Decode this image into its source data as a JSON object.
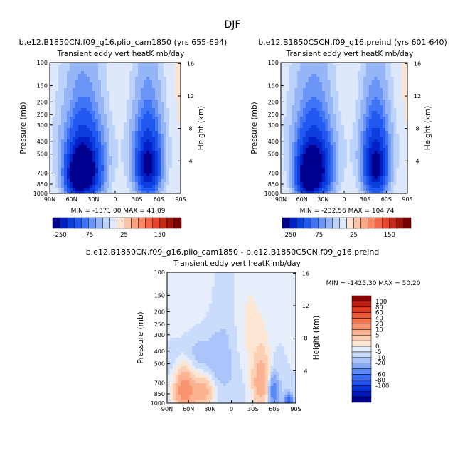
{
  "page_title": "DJF",
  "chart_data": [
    {
      "type": "heatmap",
      "title": "b.e12.B1850CN.f09_g16.plio_cam1850 (yrs 655-694)",
      "subtitle": "Transient eddy vert heatK mb/day",
      "xlabel": "",
      "ylabel": "Pressure (mb)",
      "ylabel_right": "Height (km)",
      "x_ticks": [
        "90N",
        "60N",
        "30N",
        "0",
        "30S",
        "60S",
        "90S"
      ],
      "x_values": [
        90,
        60,
        30,
        0,
        -30,
        -60,
        -90
      ],
      "y_ticks": [
        "100",
        "150",
        "200",
        "250",
        "300",
        "400",
        "500",
        "700",
        "850",
        "1000"
      ],
      "y_values": [
        100,
        150,
        200,
        250,
        300,
        400,
        500,
        700,
        850,
        1000
      ],
      "right_ticks": [
        "4",
        "8",
        "12",
        "16"
      ],
      "ylim": [
        1000,
        100
      ],
      "stats": "MIN = -1371.00   MAX =  41.09",
      "min": -1371.0,
      "max": 41.09,
      "features": [
        {
          "lat": 40,
          "p": 700,
          "value": -300,
          "lat_sigma": 14,
          "p_sigma": 240
        },
        {
          "lat": 55,
          "p": 750,
          "value": -200,
          "lat_sigma": 10,
          "p_sigma": 200
        },
        {
          "lat": -45,
          "p": 650,
          "value": -250,
          "lat_sigma": 11,
          "p_sigma": 240
        },
        {
          "lat": 45,
          "p": 400,
          "value": -80,
          "lat_sigma": 20,
          "p_sigma": 220
        },
        {
          "lat": -45,
          "p": 400,
          "value": -60,
          "lat_sigma": 16,
          "p_sigma": 220
        },
        {
          "lat": 0,
          "p": 500,
          "value": -3,
          "lat_sigma": 40,
          "p_sigma": 500
        },
        {
          "lat": 20,
          "p": 180,
          "value": 4,
          "lat_sigma": 28,
          "p_sigma": 120
        },
        {
          "lat": -55,
          "p": 180,
          "value": 3,
          "lat_sigma": 40,
          "p_sigma": 150
        }
      ]
    },
    {
      "type": "heatmap",
      "title": "b.e12.B1850C5CN.f09_g16.preind (yrs 601-640)",
      "subtitle": "Transient eddy vert heatK mb/day",
      "xlabel": "",
      "ylabel": "Pressure (mb)",
      "ylabel_right": "Height (km)",
      "x_ticks": [
        "90N",
        "60N",
        "30N",
        "0",
        "30S",
        "60S",
        "90S"
      ],
      "x_values": [
        90,
        60,
        30,
        0,
        -30,
        -60,
        -90
      ],
      "y_ticks": [
        "100",
        "150",
        "200",
        "250",
        "300",
        "400",
        "500",
        "700",
        "850",
        "1000"
      ],
      "y_values": [
        100,
        150,
        200,
        250,
        300,
        400,
        500,
        700,
        850,
        1000
      ],
      "right_ticks": [
        "4",
        "8",
        "12",
        "16"
      ],
      "ylim": [
        1000,
        100
      ],
      "stats": "MIN = -232.56   MAX = 104.74",
      "min": -232.56,
      "max": 104.74,
      "features": [
        {
          "lat": 40,
          "p": 700,
          "value": -290,
          "lat_sigma": 14,
          "p_sigma": 240
        },
        {
          "lat": 55,
          "p": 750,
          "value": -190,
          "lat_sigma": 10,
          "p_sigma": 200
        },
        {
          "lat": -45,
          "p": 650,
          "value": -260,
          "lat_sigma": 11,
          "p_sigma": 240
        },
        {
          "lat": 45,
          "p": 400,
          "value": -80,
          "lat_sigma": 20,
          "p_sigma": 220
        },
        {
          "lat": -45,
          "p": 400,
          "value": -60,
          "lat_sigma": 16,
          "p_sigma": 220
        },
        {
          "lat": 0,
          "p": 500,
          "value": -3,
          "lat_sigma": 40,
          "p_sigma": 500
        },
        {
          "lat": 20,
          "p": 180,
          "value": 4,
          "lat_sigma": 28,
          "p_sigma": 120
        },
        {
          "lat": -55,
          "p": 180,
          "value": 3,
          "lat_sigma": 40,
          "p_sigma": 150
        }
      ]
    },
    {
      "type": "heatmap",
      "title": "b.e12.B1850CN.f09_g16.plio_cam1850 - b.e12.B1850C5CN.f09_g16.preind",
      "subtitle": "Transient eddy vert heatK mb/day",
      "xlabel": "",
      "ylabel": "Pressure (mb)",
      "ylabel_right": "Height (km)",
      "x_ticks": [
        "90N",
        "60N",
        "30N",
        "0",
        "30S",
        "60S",
        "90S"
      ],
      "x_values": [
        90,
        60,
        30,
        0,
        -30,
        -60,
        -90
      ],
      "y_ticks": [
        "100",
        "150",
        "200",
        "250",
        "300",
        "400",
        "500",
        "700",
        "850",
        "1000"
      ],
      "y_values": [
        100,
        150,
        200,
        250,
        300,
        400,
        500,
        700,
        850,
        1000
      ],
      "right_ticks": [
        "4",
        "8",
        "12",
        "16"
      ],
      "ylim": [
        1000,
        100
      ],
      "stats": "MIN = -1425.30   MAX =  50.20",
      "min": -1425.3,
      "max": 50.2,
      "features": [
        {
          "lat": 65,
          "p": 800,
          "value": 30,
          "lat_sigma": 9,
          "p_sigma": 170
        },
        {
          "lat": 40,
          "p": 820,
          "value": 15,
          "lat_sigma": 9,
          "p_sigma": 150
        },
        {
          "lat": -42,
          "p": 700,
          "value": 18,
          "lat_sigma": 8,
          "p_sigma": 200
        },
        {
          "lat": -58,
          "p": 820,
          "value": -15,
          "lat_sigma": 6,
          "p_sigma": 160
        },
        {
          "lat": 50,
          "p": 450,
          "value": -4,
          "lat_sigma": 22,
          "p_sigma": 200
        },
        {
          "lat": 5,
          "p": 450,
          "value": -3,
          "lat_sigma": 18,
          "p_sigma": 300
        },
        {
          "lat": -20,
          "p": 300,
          "value": 3,
          "lat_sigma": 16,
          "p_sigma": 250
        },
        {
          "lat": 55,
          "p": 170,
          "value": 3,
          "lat_sigma": 25,
          "p_sigma": 150
        },
        {
          "lat": -80,
          "p": 980,
          "value": -25,
          "lat_sigma": 4,
          "p_sigma": 90
        }
      ]
    }
  ],
  "colorbar_main": {
    "colors": [
      "#00008e",
      "#0020c8",
      "#0a3fde",
      "#2158f0",
      "#3f74f5",
      "#6a95f6",
      "#95b5f7",
      "#bbd3fb",
      "#dde9fb",
      "#fde3d1",
      "#fcc5aa",
      "#fba584",
      "#fa8664",
      "#f66646",
      "#e8432b",
      "#c62a18",
      "#a01308",
      "#7a0000"
    ],
    "labels": [
      "-250",
      "-75",
      "25",
      "150"
    ],
    "levels": [
      -300,
      -250,
      -200,
      -150,
      -100,
      -75,
      -50,
      -25,
      -10,
      0,
      10,
      25,
      50,
      75,
      100,
      150,
      200,
      250
    ]
  },
  "colorbar_diff": {
    "colors": [
      "#00008e",
      "#0018b8",
      "#0a32d6",
      "#1f4ee8",
      "#3a6af2",
      "#5a88f6",
      "#85a8f7",
      "#aac3f8",
      "#cadcfb",
      "#e7eefb",
      "#fde6d4",
      "#fccfb4",
      "#fbb290",
      "#fa9470",
      "#f67652",
      "#ee5838",
      "#dd3a22",
      "#c02012",
      "#8e0000"
    ],
    "labels": [
      "100",
      "80",
      "60",
      "40",
      "20",
      "10",
      "5",
      "0",
      "-5",
      "-10",
      "-20",
      "-60",
      "-80",
      "-100"
    ],
    "levels": [
      -120,
      -100,
      -80,
      -60,
      -40,
      -20,
      -10,
      -5,
      -2,
      0,
      2,
      5,
      10,
      20,
      40,
      60,
      80,
      100,
      120
    ]
  }
}
